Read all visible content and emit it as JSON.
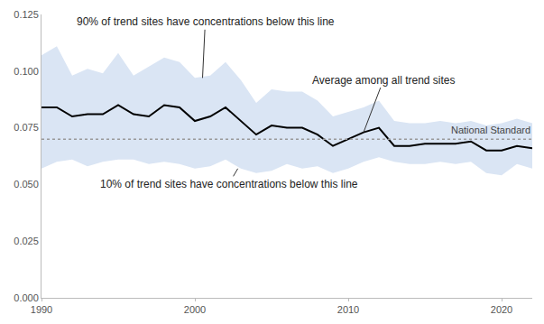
{
  "chart_data": {
    "type": "line",
    "x": [
      1990,
      1991,
      1992,
      1993,
      1994,
      1995,
      1996,
      1997,
      1998,
      1999,
      2000,
      2001,
      2002,
      2003,
      2004,
      2005,
      2006,
      2007,
      2008,
      2009,
      2010,
      2011,
      2012,
      2013,
      2014,
      2015,
      2016,
      2017,
      2018,
      2019,
      2020,
      2021,
      2022
    ],
    "series": [
      {
        "color": "#000000",
        "line_style": "solid",
        "values": [
          0.084,
          0.084,
          0.08,
          0.081,
          0.081,
          0.085,
          0.081,
          0.08,
          0.085,
          0.084,
          0.078,
          0.08,
          0.084,
          0.078,
          0.072,
          0.076,
          0.075,
          0.075,
          0.072,
          0.067,
          0.07,
          0.073,
          0.075,
          0.067,
          0.067,
          0.068,
          0.068,
          0.068,
          0.069,
          0.065,
          0.065,
          0.067,
          0.066
        ]
      }
    ],
    "band": {
      "color": "#dae5f4",
      "upper": [
        0.107,
        0.111,
        0.098,
        0.101,
        0.099,
        0.108,
        0.098,
        0.102,
        0.106,
        0.104,
        0.097,
        0.098,
        0.104,
        0.096,
        0.086,
        0.092,
        0.091,
        0.091,
        0.087,
        0.08,
        0.082,
        0.084,
        0.087,
        0.078,
        0.077,
        0.077,
        0.078,
        0.077,
        0.078,
        0.076,
        0.077,
        0.079,
        0.077
      ],
      "lower": [
        0.057,
        0.06,
        0.061,
        0.058,
        0.06,
        0.061,
        0.061,
        0.059,
        0.06,
        0.059,
        0.057,
        0.058,
        0.061,
        0.057,
        0.055,
        0.056,
        0.059,
        0.057,
        0.058,
        0.055,
        0.057,
        0.06,
        0.062,
        0.06,
        0.059,
        0.059,
        0.06,
        0.059,
        0.06,
        0.055,
        0.054,
        0.059,
        0.057
      ]
    },
    "reference_lines": [
      {
        "label": "National Standard",
        "value": 0.07,
        "color": "#999999",
        "line_style": "dotted"
      }
    ],
    "annotations": [
      {
        "text": "90% of trend sites have concentrations below this line",
        "x": 2000.5,
        "y": 0.097
      },
      {
        "text": "Average among all trend sites",
        "x": 2011,
        "y": 0.073
      },
      {
        "text": "10% of trend sites have concentrations below this line",
        "x": 2002.8,
        "y": 0.057
      }
    ],
    "xlim": [
      1990,
      2022
    ],
    "xticks": [
      1990,
      2000,
      2010,
      2020
    ],
    "ylim": [
      0,
      0.125
    ],
    "yticks": [
      {
        "value": 0,
        "label": "0.000"
      },
      {
        "value": 0.025,
        "label": "0.025"
      },
      {
        "value": 0.05,
        "label": "0.050"
      },
      {
        "value": 0.075,
        "label": "0.075"
      },
      {
        "value": 0.1,
        "label": "0.100"
      },
      {
        "value": 0.125,
        "label": "0.125"
      }
    ],
    "grid": false
  }
}
